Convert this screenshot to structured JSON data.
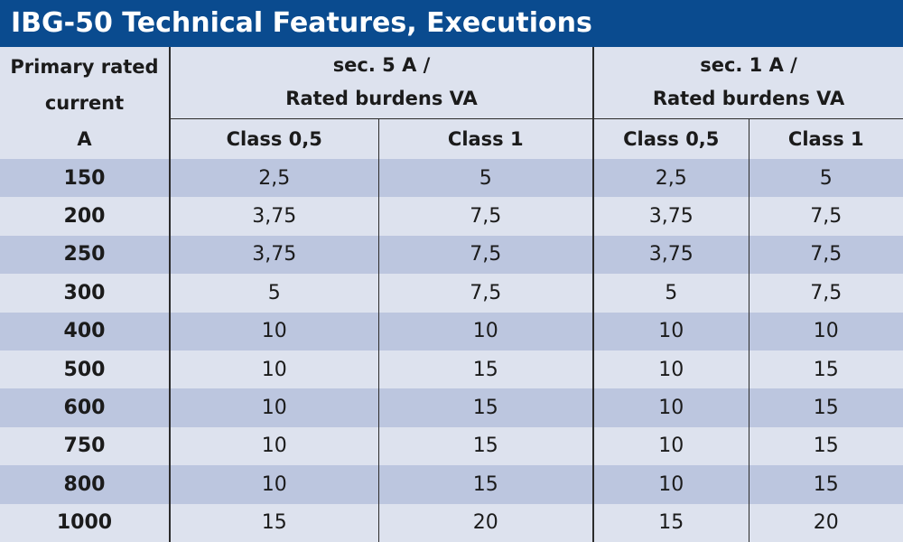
{
  "title": "IBG-50 Technical Features, Executions",
  "header": {
    "primary_line1": "Primary rated",
    "primary_line2": "current",
    "primary_line3": "A",
    "group1_line1": "sec. 5 A /",
    "group1_line2": "Rated burdens VA",
    "group2_line1": "sec. 1 A /",
    "group2_line2": "Rated burdens VA",
    "class_a": "Class 0,5",
    "class_b": "Class 1"
  },
  "rows": [
    {
      "current": "150",
      "s5_c05": "2,5",
      "s5_c1": "5",
      "s1_c05": "2,5",
      "s1_c1": "5"
    },
    {
      "current": "200",
      "s5_c05": "3,75",
      "s5_c1": "7,5",
      "s1_c05": "3,75",
      "s1_c1": "7,5"
    },
    {
      "current": "250",
      "s5_c05": "3,75",
      "s5_c1": "7,5",
      "s1_c05": "3,75",
      "s1_c1": "7,5"
    },
    {
      "current": "300",
      "s5_c05": "5",
      "s5_c1": "7,5",
      "s1_c05": "5",
      "s1_c1": "7,5"
    },
    {
      "current": "400",
      "s5_c05": "10",
      "s5_c1": "10",
      "s1_c05": "10",
      "s1_c1": "10"
    },
    {
      "current": "500",
      "s5_c05": "10",
      "s5_c1": "15",
      "s1_c05": "10",
      "s1_c1": "15"
    },
    {
      "current": "600",
      "s5_c05": "10",
      "s5_c1": "15",
      "s1_c05": "10",
      "s1_c1": "15"
    },
    {
      "current": "750",
      "s5_c05": "10",
      "s5_c1": "15",
      "s1_c05": "10",
      "s1_c1": "15"
    },
    {
      "current": "800",
      "s5_c05": "10",
      "s5_c1": "15",
      "s1_c05": "10",
      "s1_c1": "15"
    },
    {
      "current": "1000",
      "s5_c05": "15",
      "s5_c1": "20",
      "s1_c05": "15",
      "s1_c1": "20"
    }
  ],
  "colors": {
    "title_bg": "#0a4b8f",
    "row_shaded": "#bcc6df",
    "row_light": "#dde2ee"
  }
}
